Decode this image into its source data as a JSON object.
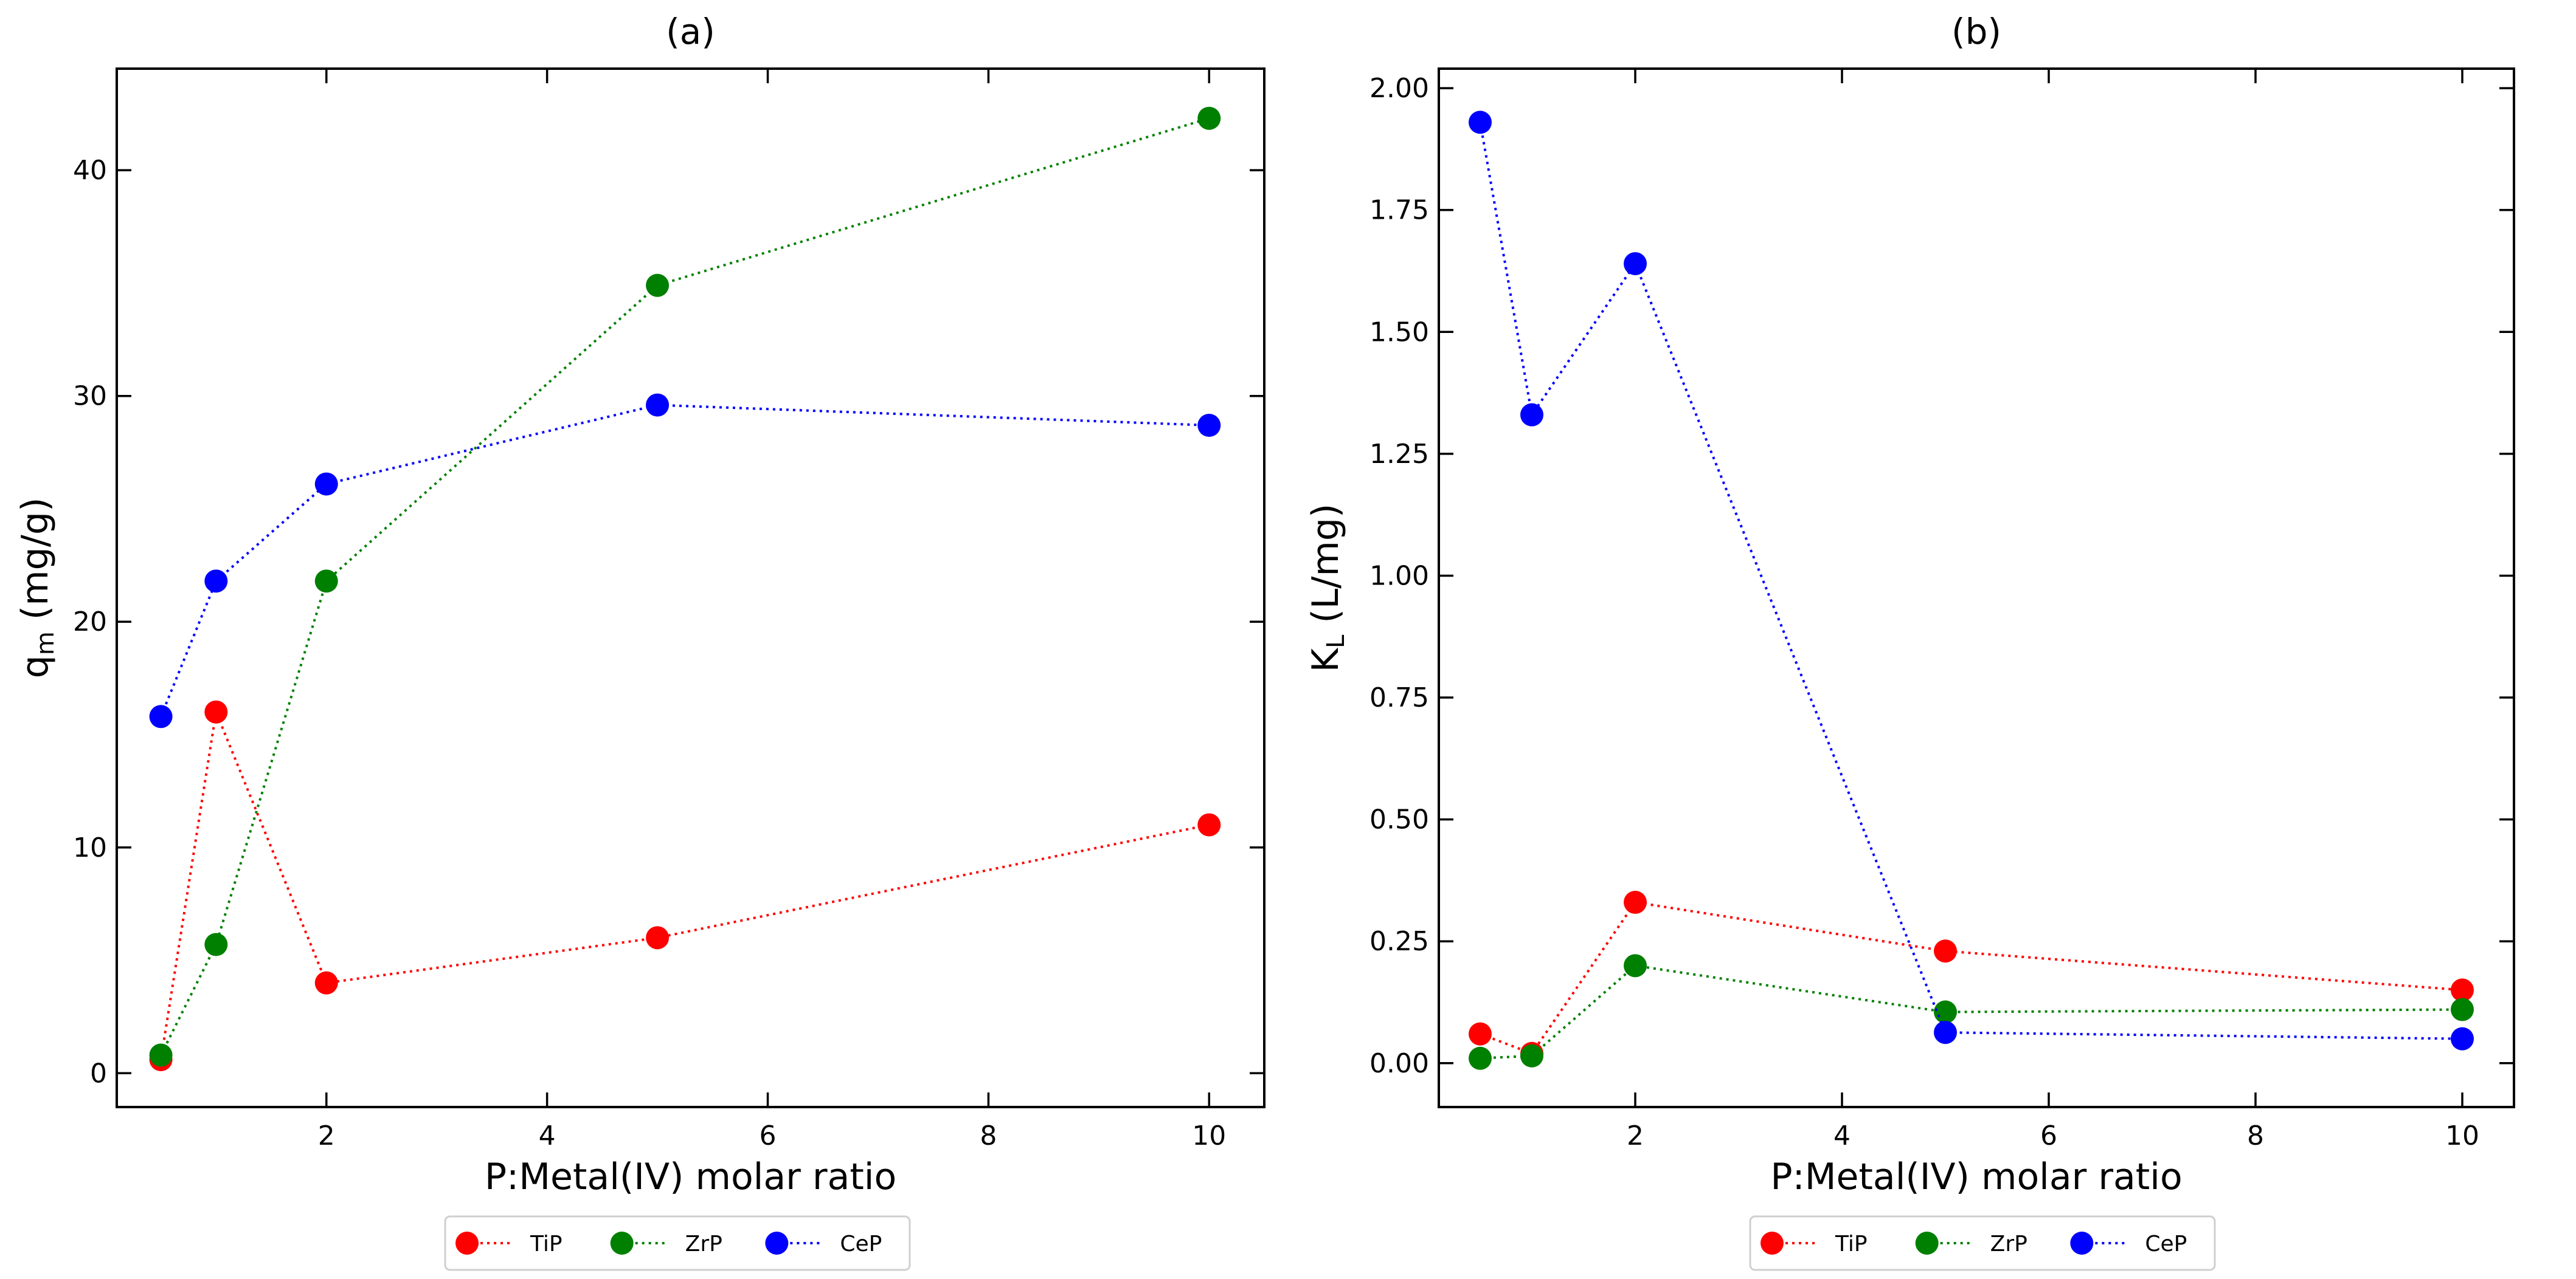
{
  "chart_data": [
    {
      "id": "a",
      "type": "line",
      "title": "(a)",
      "xlabel": "P:Metal(IV) molar ratio",
      "ylabel": "qm (mg/g)",
      "ylabel_main": "q",
      "ylabel_sub": "m",
      "ylabel_rest": " (mg/g)",
      "xlim": [
        0.1,
        10.5
      ],
      "ylim": [
        -1.5,
        44.5
      ],
      "xticks": [
        2,
        4,
        6,
        8,
        10
      ],
      "yticks": [
        0,
        10,
        20,
        30,
        40
      ],
      "x": [
        0.5,
        1,
        2,
        5,
        10
      ],
      "series": [
        {
          "name": "TiP",
          "color": "#ff0000",
          "values": [
            0.6,
            16.0,
            4.0,
            6.0,
            11.0
          ]
        },
        {
          "name": "ZrP",
          "color": "#008000",
          "values": [
            0.8,
            5.7,
            21.8,
            34.9,
            42.3
          ]
        },
        {
          "name": "CeP",
          "color": "#0000ff",
          "values": [
            15.8,
            21.8,
            26.1,
            29.6,
            28.7
          ]
        }
      ],
      "legend_position": "bottom-center"
    },
    {
      "id": "b",
      "type": "line",
      "title": "(b)",
      "xlabel": "P:Metal(IV) molar ratio",
      "ylabel": "KL (L/mg)",
      "ylabel_main": "K",
      "ylabel_sub": "L",
      "ylabel_rest": " (L/mg)",
      "xlim": [
        0.1,
        10.5
      ],
      "ylim": [
        -0.09,
        2.04
      ],
      "xticks": [
        2,
        4,
        6,
        8,
        10
      ],
      "yticks": [
        0.0,
        0.25,
        0.5,
        0.75,
        1.0,
        1.25,
        1.5,
        1.75,
        2.0
      ],
      "ytick_labels": [
        "0.00",
        "0.25",
        "0.50",
        "0.75",
        "1.00",
        "1.25",
        "1.50",
        "1.75",
        "2.00"
      ],
      "x": [
        0.5,
        1,
        2,
        5,
        10
      ],
      "series": [
        {
          "name": "TiP",
          "color": "#ff0000",
          "values": [
            0.06,
            0.02,
            0.33,
            0.23,
            0.15
          ]
        },
        {
          "name": "ZrP",
          "color": "#008000",
          "values": [
            0.01,
            0.015,
            0.2,
            0.105,
            0.11
          ]
        },
        {
          "name": "CeP",
          "color": "#0000ff",
          "values": [
            1.93,
            1.33,
            1.64,
            0.063,
            0.05
          ]
        }
      ],
      "legend_position": "bottom-center"
    }
  ]
}
